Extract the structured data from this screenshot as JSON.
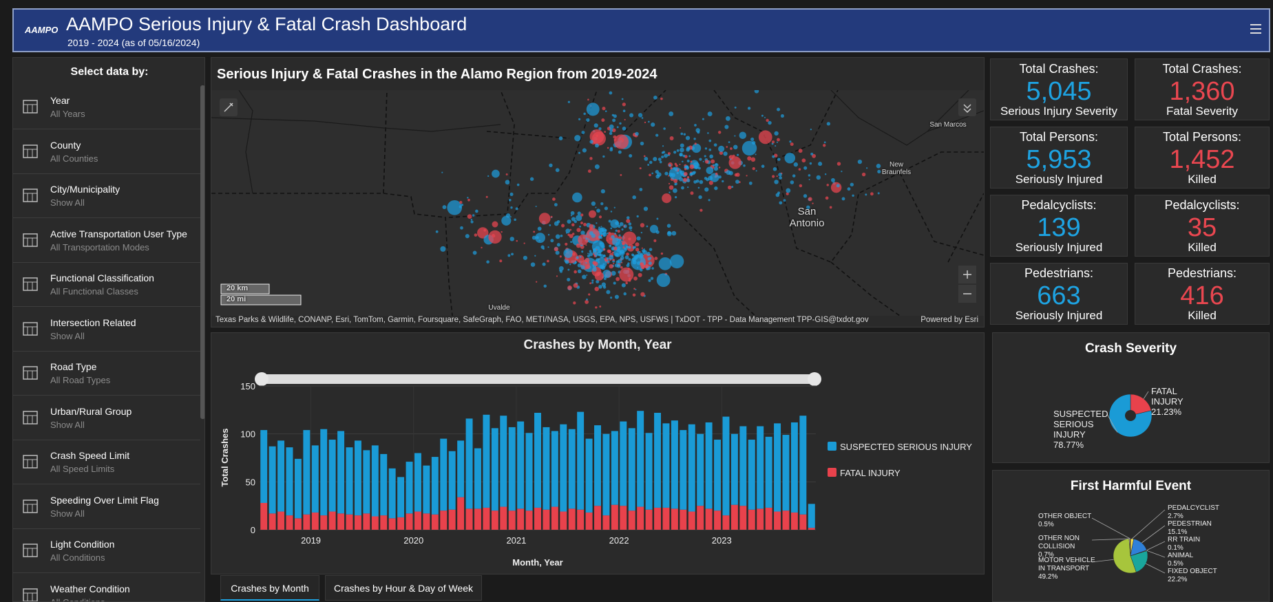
{
  "header": {
    "logo": "AAMPO",
    "title": "AAMPO Serious Injury & Fatal Crash Dashboard",
    "subtitle": "2019 - 2024 (as of 05/16/2024)"
  },
  "sidebar": {
    "heading": "Select data by:",
    "filters": [
      {
        "label": "Year",
        "value": "All Years"
      },
      {
        "label": "County",
        "value": "All Counties"
      },
      {
        "label": "City/Municipality",
        "value": "Show All"
      },
      {
        "label": "Active Transportation User Type",
        "value": "All Transportation Modes"
      },
      {
        "label": "Functional Classification",
        "value": "All Functional Classes"
      },
      {
        "label": "Intersection Related",
        "value": "Show All"
      },
      {
        "label": "Road Type",
        "value": "All Road Types"
      },
      {
        "label": "Urban/Rural Group",
        "value": "Show All"
      },
      {
        "label": "Crash Speed Limit",
        "value": "All Speed Limits"
      },
      {
        "label": "Speeding Over Limit Flag",
        "value": "Show All"
      },
      {
        "label": "Light Condition",
        "value": "All Conditions"
      },
      {
        "label": "Weather Condition",
        "value": "All Conditions"
      }
    ]
  },
  "map": {
    "title": "Serious Injury & Fatal Crashes in the Alamo Region from 2019-2024",
    "places": [
      "San Marcos",
      "New Braunfels",
      "San Antonio",
      "Uvalde"
    ],
    "scale": [
      "20 km",
      "20 mi"
    ],
    "attribution": "Texas Parks & Wildlife, CONANP, Esri, TomTom, Garmin, Foursquare, SafeGraph, FAO, METI/NASA, USGS, EPA, NPS, USFWS | TxDOT - TPP - Data Management TPP-GIS@txdot.gov",
    "powered": "Powered by Esri"
  },
  "stats": [
    {
      "label": "Total Crashes:",
      "value": "5,045",
      "sub": "Serious Injury Severity",
      "color": "#1ea3e2"
    },
    {
      "label": "Total Crashes:",
      "value": "1,360",
      "sub": "Fatal Severity",
      "color": "#ea4750"
    },
    {
      "label": "Total Persons:",
      "value": "5,953",
      "sub": "Seriously Injured",
      "color": "#1ea3e2"
    },
    {
      "label": "Total Persons:",
      "value": "1,452",
      "sub": "Killed",
      "color": "#ea4750"
    },
    {
      "label": "Pedalcyclists:",
      "value": "139",
      "sub": "Seriously Injured",
      "color": "#1ea3e2"
    },
    {
      "label": "Pedalcyclists:",
      "value": "35",
      "sub": "Killed",
      "color": "#ea4750"
    },
    {
      "label": "Pedestrians:",
      "value": "663",
      "sub": "Seriously Injured",
      "color": "#1ea3e2"
    },
    {
      "label": "Pedestrians:",
      "value": "416",
      "sub": "Killed",
      "color": "#ea4750"
    }
  ],
  "chart_data": [
    {
      "type": "bar",
      "stacked": true,
      "title": "Crashes by Month, Year",
      "x_label": "Month, Year",
      "y_label": "Total Crashes",
      "categories": [
        null,
        null,
        null,
        null,
        null,
        null,
        "2019",
        null,
        null,
        null,
        null,
        null,
        null,
        null,
        null,
        null,
        null,
        null,
        "2020",
        null,
        null,
        null,
        null,
        null,
        null,
        null,
        null,
        null,
        null,
        null,
        "2021",
        null,
        null,
        null,
        null,
        null,
        null,
        null,
        null,
        null,
        null,
        null,
        "2022",
        null,
        null,
        null,
        null,
        null,
        null,
        null,
        null,
        null,
        null,
        null,
        "2023",
        null,
        null,
        null,
        null,
        null,
        null,
        null,
        null,
        null,
        null
      ],
      "series": [
        {
          "name": "FATAL INJURY",
          "color": "#e8424c",
          "values": [
            28,
            17,
            19,
            15,
            12,
            16,
            18,
            15,
            19,
            17,
            16,
            15,
            17,
            14,
            15,
            12,
            13,
            17,
            19,
            17,
            16,
            20,
            21,
            34,
            22,
            22,
            23,
            20,
            24,
            20,
            22,
            20,
            23,
            21,
            24,
            19,
            22,
            21,
            18,
            25,
            15,
            26,
            25,
            20,
            24,
            21,
            23,
            23,
            22,
            21,
            19,
            25,
            22,
            20,
            15,
            26,
            25,
            21,
            22,
            23,
            19,
            20,
            18,
            16,
            2
          ]
        },
        {
          "name": "SUSPECTED SERIOUS INJURY",
          "color": "#1a9bd6",
          "values": [
            76,
            70,
            74,
            71,
            62,
            88,
            70,
            90,
            75,
            86,
            70,
            78,
            66,
            74,
            64,
            52,
            42,
            54,
            61,
            50,
            60,
            75,
            61,
            59,
            94,
            63,
            97,
            86,
            95,
            87,
            91,
            81,
            99,
            86,
            79,
            91,
            83,
            102,
            77,
            84,
            85,
            77,
            88,
            86,
            100,
            80,
            99,
            88,
            92,
            83,
            91,
            75,
            90,
            74,
            103,
            74,
            83,
            73,
            86,
            74,
            92,
            79,
            94,
            103,
            25
          ]
        }
      ],
      "ylim": [
        0,
        150
      ],
      "yticks": [
        0,
        50,
        100,
        150
      ],
      "grid": true
    },
    {
      "type": "pie",
      "donut": true,
      "title": "Crash Severity",
      "categories": [
        "FATAL INJURY",
        "SUSPECTED SERIOUS INJURY"
      ],
      "values": [
        21.23,
        78.77
      ],
      "value_labels": [
        "21.23%",
        "78.77%"
      ],
      "colors": [
        "#e8424c",
        "#1a9bd6"
      ]
    },
    {
      "type": "pie",
      "donut": false,
      "title": "First Harmful Event",
      "categories": [
        "PEDALCYCLIST",
        "PEDESTRIAN",
        "RR TRAIN",
        "ANIMAL",
        "FIXED OBJECT",
        "MOTOR VEHICLE IN TRANSPORT",
        "OTHER NON COLLISION",
        "OTHER OBJECT"
      ],
      "values": [
        2.7,
        15.1,
        0.1,
        0.5,
        22.2,
        49.2,
        0.7,
        0.5
      ],
      "value_labels": [
        "2.7%",
        "15.1%",
        "0.1%",
        "0.5%",
        "22.2%",
        "49.2%",
        "0.7%",
        "0.5%"
      ],
      "colors": [
        "#f2e04e",
        "#2f80d8",
        "#9a5fc9",
        "#d0892e",
        "#1aa69c",
        "#a7c53c",
        "#d9d9d9",
        "#e7663f"
      ]
    }
  ],
  "tabs": [
    "Crashes by Month",
    "Crashes by Hour & Day of Week"
  ]
}
